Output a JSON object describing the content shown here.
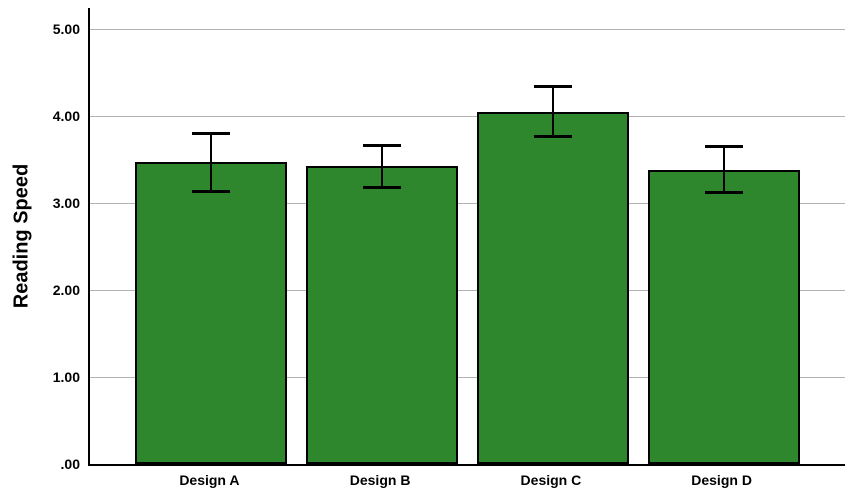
{
  "chart_data": {
    "type": "bar",
    "title": "",
    "xlabel": "",
    "ylabel": "Reading Speed",
    "categories": [
      "Design A",
      "Design B",
      "Design C",
      "Design D"
    ],
    "values": [
      3.47,
      3.42,
      4.05,
      3.38
    ],
    "error_upper": [
      3.8,
      3.67,
      4.34,
      3.65
    ],
    "error_lower": [
      3.13,
      3.17,
      3.76,
      3.11
    ],
    "ylim": [
      0,
      5.24
    ],
    "yticks": [
      0,
      1,
      2,
      3,
      4,
      5
    ],
    "ytick_labels": [
      ".00",
      "1.00",
      "2.00",
      "3.00",
      "4.00",
      "5.00"
    ],
    "grid": "horizontal",
    "legend": "none",
    "bar_color": "#2e872c",
    "bar_border_color": "#000000",
    "error_bar_color": "#000000",
    "gridline_color": "#b3b3b3",
    "axis_color": "#000000",
    "background_color": "#ffffff"
  }
}
